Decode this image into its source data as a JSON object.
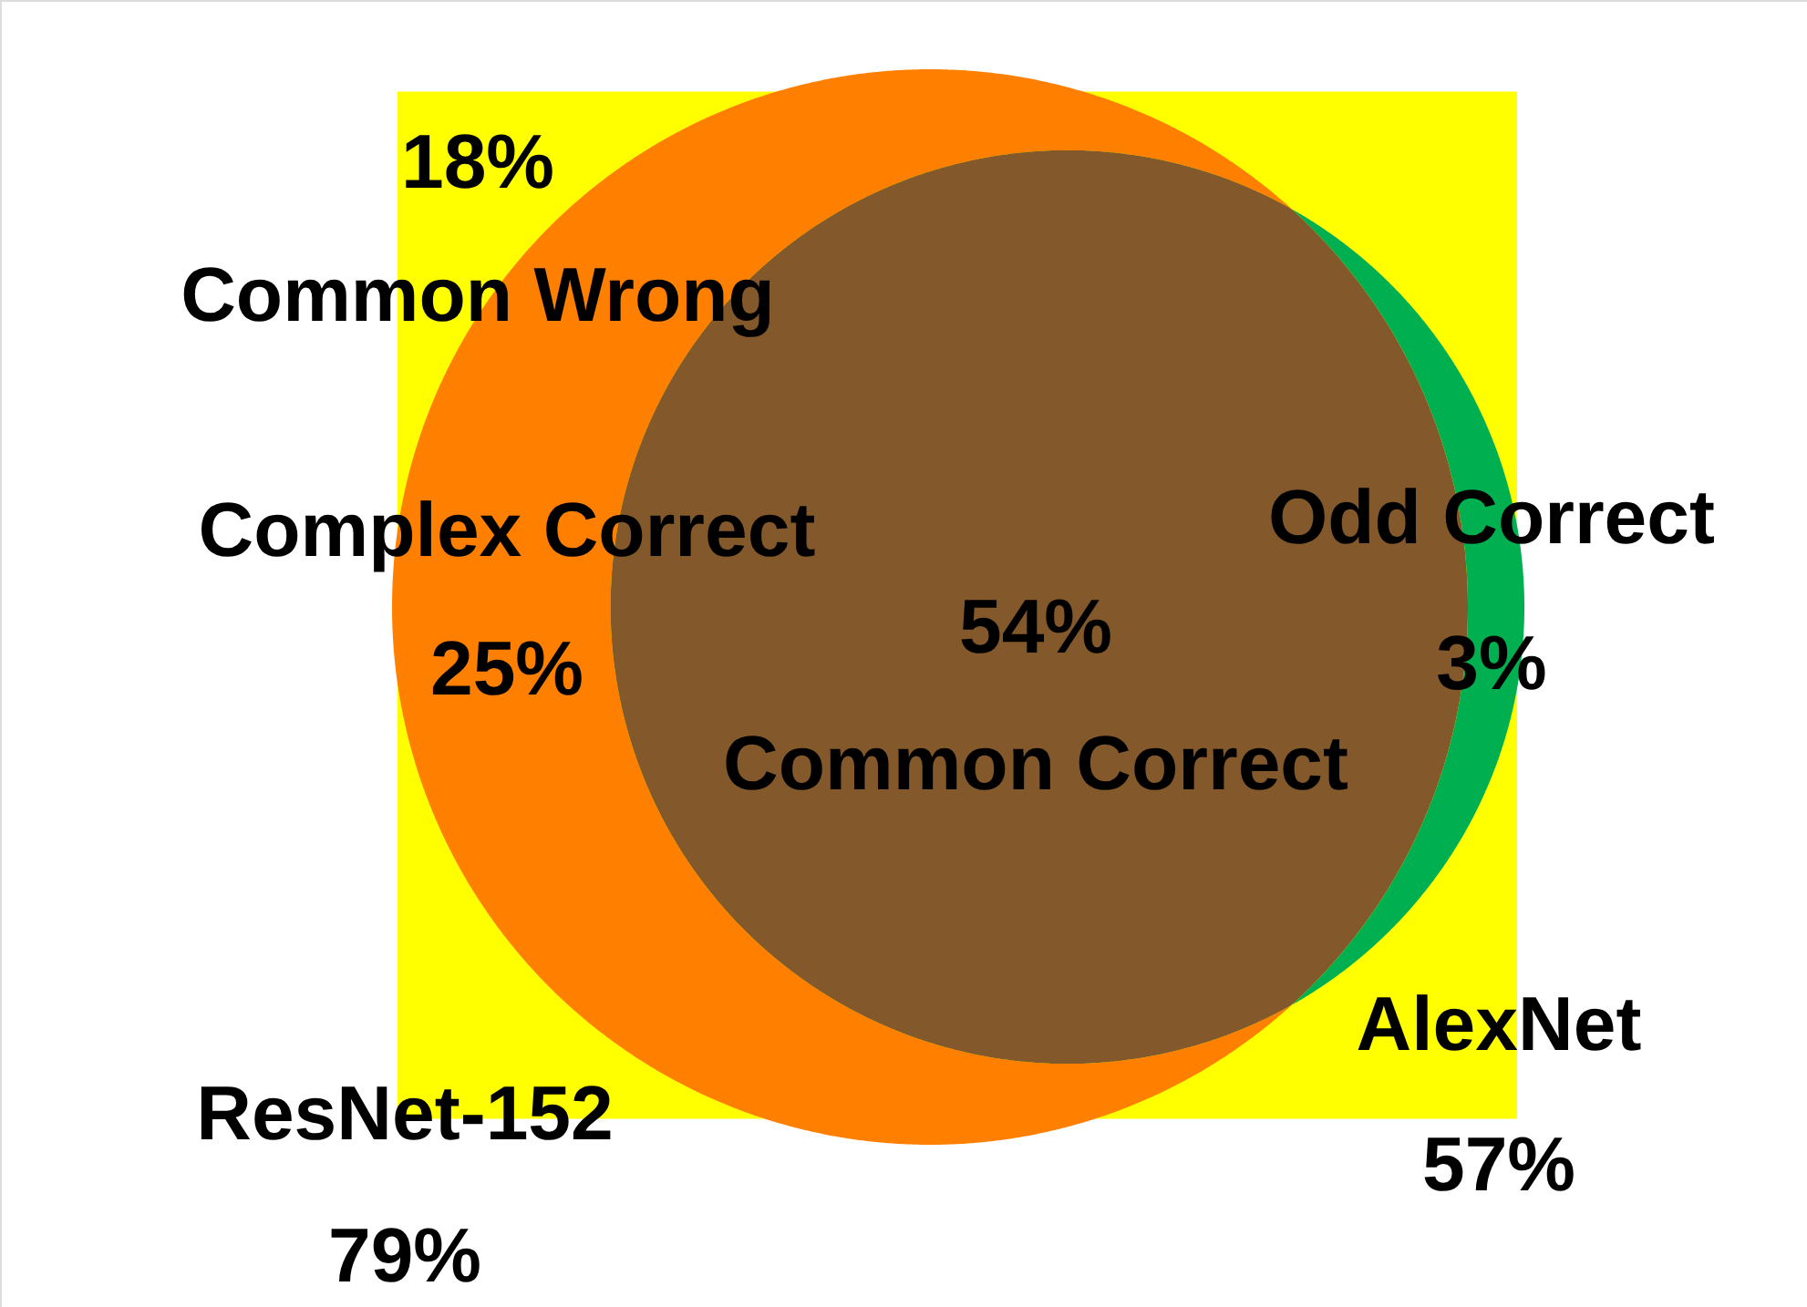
{
  "chart_data": {
    "type": "other",
    "categories": [
      "Common Wrong",
      "Complex Correct",
      "Common Correct",
      "Odd Correct",
      "ResNet-152",
      "AlexNet"
    ],
    "values": [
      18,
      25,
      54,
      3,
      79,
      57
    ],
    "value_labels": [
      "18%",
      "25%",
      "54%",
      "3%",
      "79%",
      "57%"
    ],
    "colors": [
      "#ffff00",
      "#ff8000",
      "#83582a",
      "#00b050",
      null,
      null
    ]
  }
}
